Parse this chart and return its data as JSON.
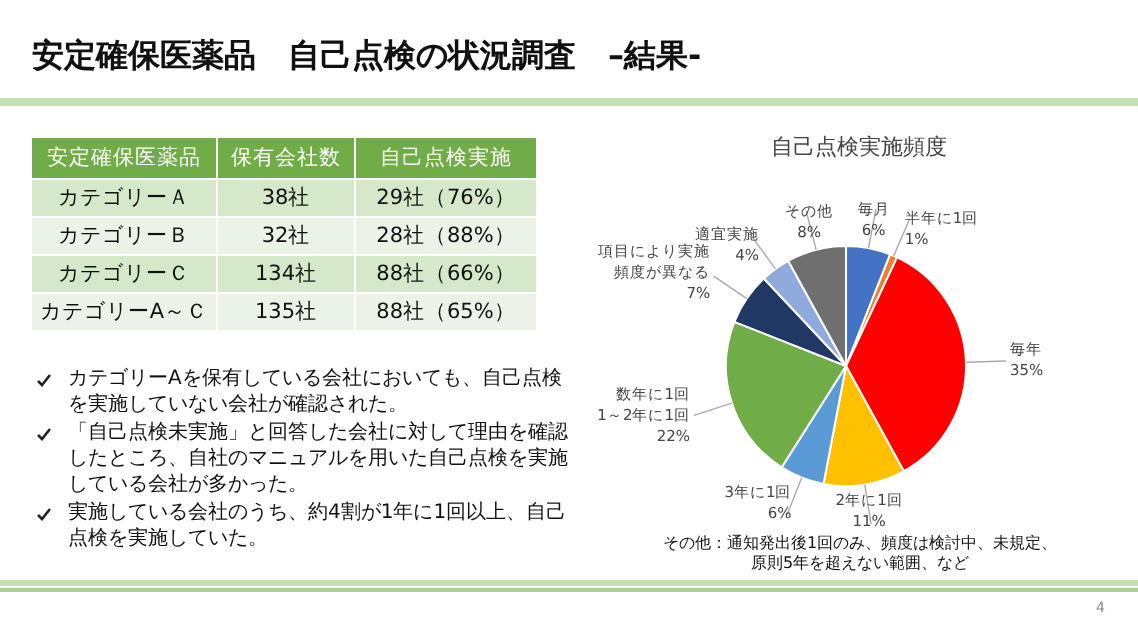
{
  "chart_data": [
    {
      "type": "other",
      "title": "安定確保医薬品　自己点検の状況調査　–結果-",
      "categories": [
        "安定確保医薬品",
        "保有会社数",
        "自己点検実施"
      ],
      "cell_labels": [
        [
          "カテゴリーＡ",
          "38社",
          "29社（76%）"
        ],
        [
          "カテゴリーＢ",
          "32社",
          "28社（88%）"
        ],
        [
          "カテゴリーＣ",
          "134社",
          "88社（66%）"
        ],
        [
          "カテゴリーA～Ｃ",
          "135社",
          "88社（65%）"
        ]
      ],
      "annotations": [
        "カテゴリーAを保有している会社においても、自己点検を実施していない会社が確認された。",
        "「自己点検未実施」と回答した会社に対して理由を確認したところ、自社のマニュアルを用いた自己点検を実施している会社が多かった。",
        "実施している会社のうち、約4割が1年に1回以上、自己点検を実施していた。",
        "4"
      ]
    },
    {
      "type": "pie",
      "title": "自己点検実施頻度",
      "categories": [
        "毎月",
        "半年に1回",
        "毎年",
        "2年に1回",
        "3年に1回",
        "数年に1回1～2年に1回",
        "項目により実施頻度が異なる",
        "適宜実施",
        "その他"
      ],
      "values": [
        6,
        1,
        35,
        11,
        6,
        22,
        7,
        4,
        8
      ],
      "value_labels": [
        "6%",
        "1%",
        "35%",
        "11%",
        "6%",
        "22%",
        "7%",
        "4%",
        "8%"
      ],
      "colors": [
        "#4472c4",
        "#ed7d31",
        "#ff0000",
        "#ffc000",
        "#5b9bd5",
        "#70ad47",
        "#203864",
        "#8faadc",
        "#6f6f6f"
      ],
      "legend": false,
      "annotations": [
        "その他：通知発出後1回のみ、頻度は検討中、未規定、原則5年を超えない範囲、など"
      ]
    }
  ]
}
